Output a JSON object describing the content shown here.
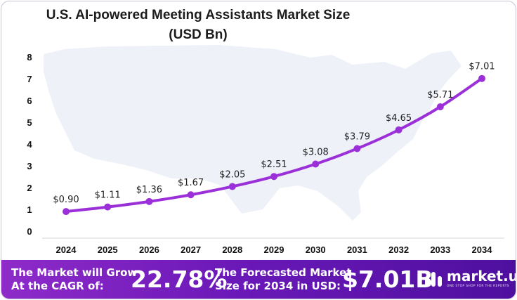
{
  "chart_data": {
    "type": "line",
    "title": "U.S. AI-powered Meeting Assistants Market Size",
    "subtitle": "(USD Bn)",
    "xlabel": "",
    "ylabel": "",
    "categories": [
      "2024",
      "2025",
      "2026",
      "2027",
      "2028",
      "2029",
      "2030",
      "2031",
      "2032",
      "2033",
      "2034"
    ],
    "values": [
      0.9,
      1.11,
      1.36,
      1.67,
      2.05,
      2.51,
      3.08,
      3.79,
      4.65,
      5.71,
      7.01
    ],
    "data_labels": [
      "$0.90",
      "$1.11",
      "$1.36",
      "$1.67",
      "$2.05",
      "$2.51",
      "$3.08",
      "$3.79",
      "$4.65",
      "$5.71",
      "$7.01"
    ],
    "yticks": [
      "0",
      "1",
      "2",
      "3",
      "4",
      "5",
      "6",
      "7",
      "8"
    ],
    "ylim": [
      0,
      8
    ],
    "grid": false,
    "legend": "none",
    "line_color": "#9b30d9"
  },
  "footer": {
    "cagr_label_line1": "The Market will Grow",
    "cagr_label_line2": "At the CAGR of:",
    "cagr_value": "22.78%",
    "forecast_label_line1": "The Forecasted Market",
    "forecast_label_line2": "Size for 2034 in USD:",
    "forecast_value": "$7.01B"
  },
  "brand": {
    "name": "market.us",
    "tagline": "ONE STOP SHOP FOR THE REPORTS",
    "icon": "market-us-logo-icon"
  }
}
